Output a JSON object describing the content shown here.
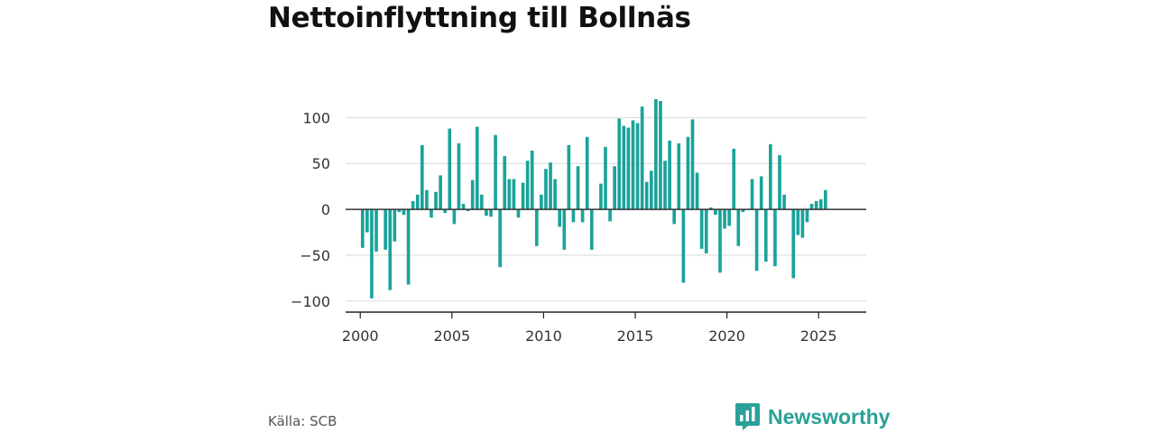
{
  "title": "Nettoinflyttning till Bollnäs",
  "source": "Källa: SCB",
  "brand": "Newsworthy",
  "colors": {
    "bar": "#1aa39a",
    "brand": "#2aa198",
    "grid": "#d9d9d9",
    "zero": "#333333"
  },
  "chart_data": {
    "type": "bar",
    "title": "Nettoinflyttning till Bollnäs",
    "xlabel": "",
    "ylabel": "",
    "xlim": [
      1999.2,
      2027.6
    ],
    "ylim": [
      -112,
      120
    ],
    "yticks": [
      100,
      50,
      0,
      -50,
      -100
    ],
    "ytick_labels": [
      "100",
      "50",
      "0",
      "−50",
      "−100"
    ],
    "xticks": [
      2000,
      2005,
      2010,
      2015,
      2020,
      2025
    ],
    "xtick_labels": [
      "2000",
      "2005",
      "2010",
      "2015",
      "2020",
      "2025"
    ],
    "grid": true,
    "legend": "none",
    "x_start": 2000.125,
    "x_step": 0.25,
    "values": [
      -42,
      -25,
      -97,
      -46,
      0,
      -44,
      -88,
      -35,
      -3,
      -6,
      -82,
      9,
      16,
      70,
      21,
      -9,
      19,
      37,
      -4,
      88,
      -16,
      72,
      6,
      -2,
      32,
      90,
      16,
      -7,
      -8,
      81,
      -63,
      58,
      33,
      33,
      -9,
      29,
      53,
      64,
      -40,
      16,
      44,
      51,
      33,
      -19,
      -44,
      70,
      -14,
      47,
      -14,
      79,
      -44,
      0,
      28,
      68,
      -13,
      47,
      99,
      91,
      89,
      97,
      94,
      112,
      30,
      42,
      120,
      118,
      53,
      75,
      -16,
      72,
      -80,
      79,
      98,
      40,
      -43,
      -48,
      2,
      -6,
      -69,
      -21,
      -18,
      66,
      -40,
      -3,
      0,
      33,
      -67,
      36,
      -57,
      71,
      -62,
      59,
      16,
      0,
      -75,
      -28,
      -31,
      -14,
      6,
      9,
      11,
      21
    ]
  }
}
